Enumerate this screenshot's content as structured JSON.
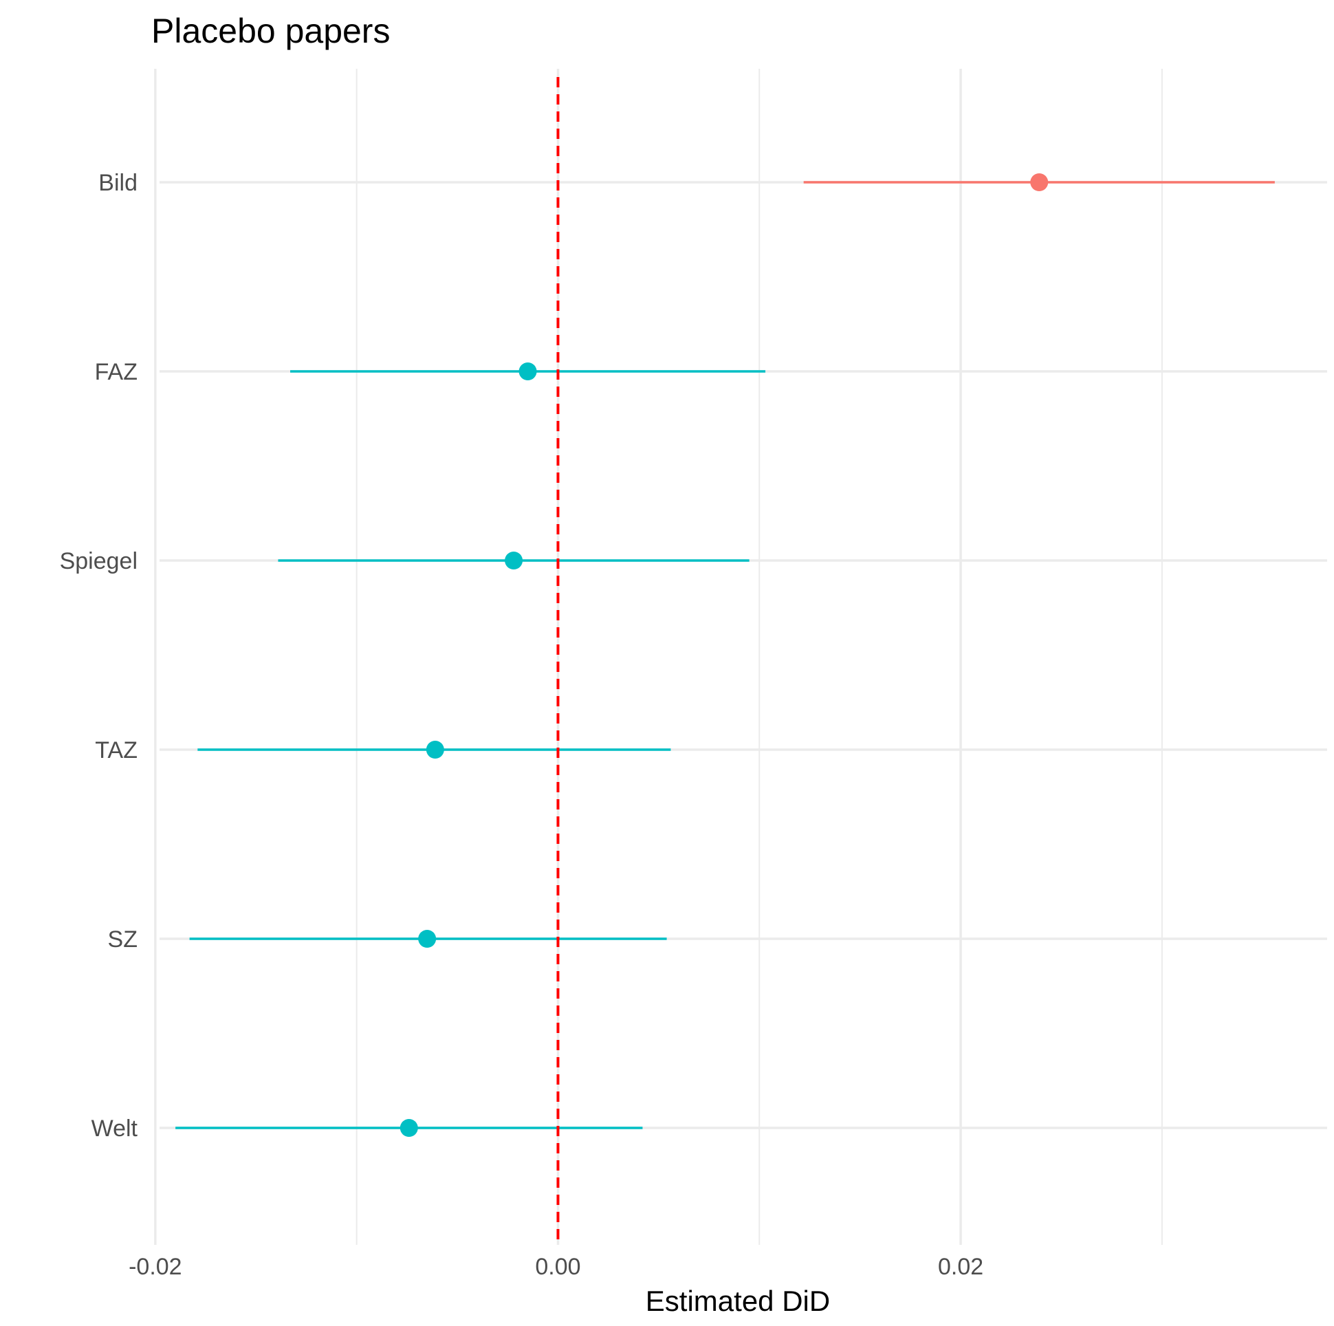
{
  "chart_data": {
    "type": "scatter",
    "subtype": "dot-and-whisker",
    "title": "Placebo papers",
    "xlabel": "Estimated DiD",
    "ylabel": "",
    "xlim": [
      -0.0202,
      0.0382
    ],
    "x_ticks": [
      {
        "value": -0.02,
        "label": "-0.02"
      },
      {
        "value": 0.0,
        "label": "0.00"
      },
      {
        "value": 0.02,
        "label": "0.02"
      }
    ],
    "x_minor_ticks": [
      -0.01,
      0.01,
      0.03
    ],
    "categories": [
      "Bild",
      "FAZ",
      "Spiegel",
      "TAZ",
      "SZ",
      "Welt"
    ],
    "estimates": [
      0.0239,
      -0.0015,
      -0.0022,
      -0.0061,
      -0.0065,
      -0.0074
    ],
    "ci_low": [
      0.0122,
      -0.0133,
      -0.0139,
      -0.0179,
      -0.0183,
      -0.019
    ],
    "ci_high": [
      0.0356,
      0.0103,
      0.0095,
      0.0056,
      0.0054,
      0.0042
    ],
    "point_colors": [
      "#F8766D",
      "#00BFC4",
      "#00BFC4",
      "#00BFC4",
      "#00BFC4",
      "#00BFC4"
    ],
    "reference_line": {
      "x": 0.0,
      "color": "#FF0000",
      "style": "dashed"
    },
    "grid": true,
    "legend": "none"
  }
}
